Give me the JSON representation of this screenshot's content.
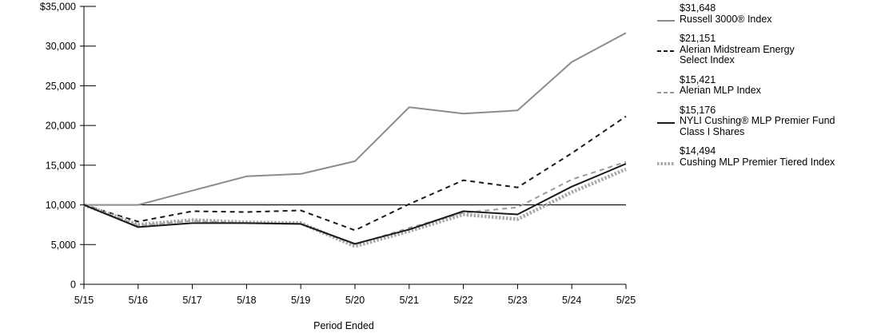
{
  "chart_data": {
    "type": "line",
    "xlabel": "Period Ended",
    "ylabel": "",
    "categories": [
      "5/15",
      "5/16",
      "5/17",
      "5/18",
      "5/19",
      "5/20",
      "5/21",
      "5/22",
      "5/23",
      "5/24",
      "5/25"
    ],
    "yticks": [
      "$35,000",
      "30,000",
      "25,000",
      "20,000",
      "15,000",
      "10,000",
      "5,000",
      "0"
    ],
    "ylim": [
      0,
      35000
    ],
    "grid": false,
    "legend_position": "right",
    "reference_line_value": 10000,
    "series": [
      {
        "name": "Russell 3000® Index",
        "end_value": "$31,648",
        "color": "#8c8c8c",
        "style": "solid",
        "values": [
          10000,
          10000,
          11800,
          13600,
          13900,
          15500,
          22300,
          21500,
          21900,
          28000,
          31648
        ]
      },
      {
        "name": "Alerian Midstream Energy Select Index",
        "end_value": "$21,151",
        "color": "#1a1a1a",
        "style": "dashed",
        "values": [
          10000,
          7900,
          9200,
          9100,
          9300,
          6800,
          10100,
          13100,
          12200,
          16500,
          21151
        ]
      },
      {
        "name": "Alerian MLP Index",
        "end_value": "$15,421",
        "color": "#9a9a9a",
        "style": "dashed",
        "values": [
          10000,
          7400,
          8000,
          7700,
          7600,
          5000,
          7100,
          9000,
          9700,
          13200,
          15421
        ]
      },
      {
        "name": "NYLI Cushing® MLP Premier Fund Class I Shares",
        "end_value": "$15,176",
        "color": "#1a1a1a",
        "style": "solid",
        "values": [
          10000,
          7200,
          7700,
          7700,
          7600,
          5100,
          6900,
          9200,
          8800,
          12300,
          15176
        ]
      },
      {
        "name": "Cushing MLP Premier Tiered Index",
        "end_value": "$14,494",
        "color": "#a8a8a8",
        "style": "dotted",
        "values": [
          10000,
          7500,
          8100,
          7800,
          7700,
          4800,
          6700,
          8800,
          8200,
          11600,
          14494
        ]
      }
    ],
    "legend_lines": [
      [
        "Russell 3000® Index"
      ],
      [
        "Alerian Midstream Energy",
        "Select Index"
      ],
      [
        "Alerian MLP Index"
      ],
      [
        "NYLI Cushing® MLP Premier Fund",
        "Class I Shares"
      ],
      [
        "Cushing MLP Premier Tiered Index"
      ]
    ]
  }
}
